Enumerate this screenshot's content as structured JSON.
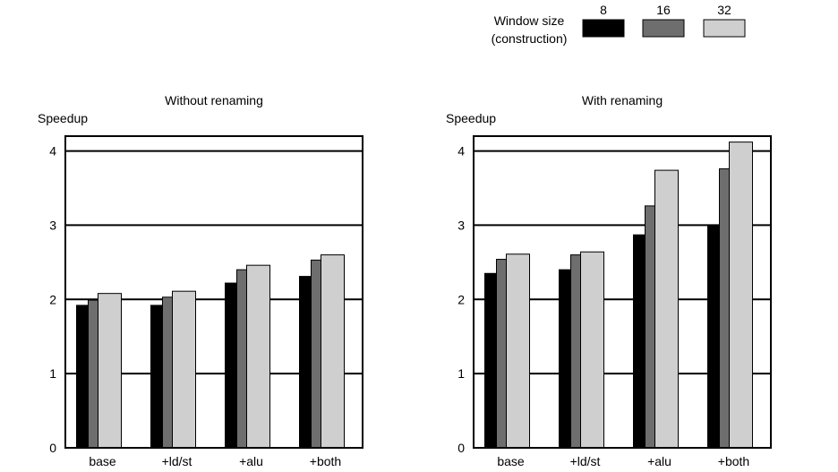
{
  "legend": {
    "title_line1": "Window size",
    "title_line2": "(construction)",
    "items": [
      {
        "label": "8",
        "color": "#000000"
      },
      {
        "label": "16",
        "color": "#6e6e6e"
      },
      {
        "label": "32",
        "color": "#cfcfcf"
      }
    ]
  },
  "chart_data": [
    {
      "type": "bar",
      "title": "Without renaming",
      "ylabel": "Speedup",
      "xlabel": "",
      "categories": [
        "base",
        "+ld/st",
        "+alu",
        "+both"
      ],
      "series": [
        {
          "name": "8",
          "values": [
            1.92,
            1.92,
            2.22,
            2.31
          ]
        },
        {
          "name": "16",
          "values": [
            1.99,
            2.03,
            2.4,
            2.53
          ]
        },
        {
          "name": "32",
          "values": [
            2.08,
            2.11,
            2.46,
            2.6
          ]
        }
      ],
      "ylim": [
        0,
        4.2
      ],
      "yticks": [
        0,
        1,
        2,
        3,
        4
      ],
      "grid": true,
      "legend_position": "top-right"
    },
    {
      "type": "bar",
      "title": "With renaming",
      "ylabel": "Speedup",
      "xlabel": "",
      "categories": [
        "base",
        "+ld/st",
        "+alu",
        "+both"
      ],
      "series": [
        {
          "name": "8",
          "values": [
            2.35,
            2.4,
            2.87,
            3.0
          ]
        },
        {
          "name": "16",
          "values": [
            2.54,
            2.6,
            3.26,
            3.76
          ]
        },
        {
          "name": "32",
          "values": [
            2.61,
            2.64,
            3.74,
            4.12
          ]
        }
      ],
      "ylim": [
        0,
        4.2
      ],
      "yticks": [
        0,
        1,
        2,
        3,
        4
      ],
      "grid": true,
      "legend_position": "top-right"
    }
  ]
}
